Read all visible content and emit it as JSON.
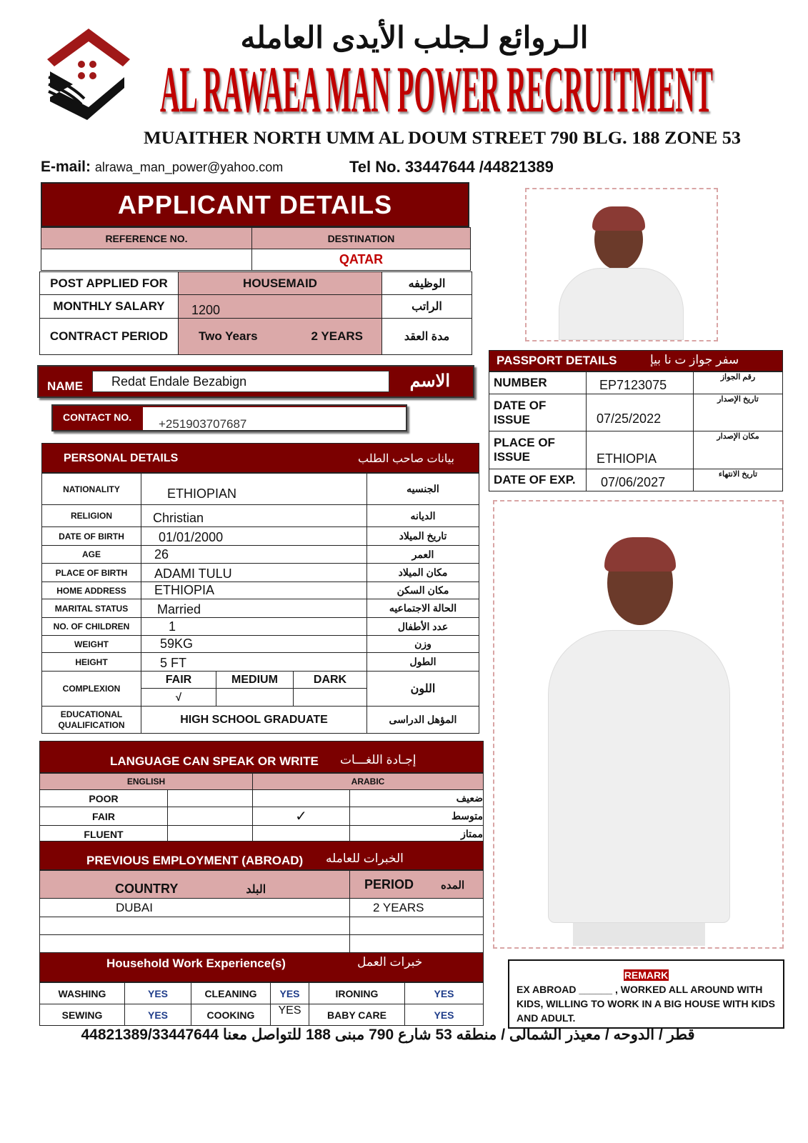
{
  "header": {
    "arabic_title": "الـروائع لـجلب الأيدى العامله",
    "title": "AL RAWAEA MAN POWER RECRUITMENT",
    "address": "MUAITHER NORTH UMM AL DOUM STREET 790 BLG. 188 ZONE 53",
    "email_label": "E-mail:",
    "email": "alrawa_man_power@yahoo.com",
    "tel": "Tel No. 33447644 /44821389",
    "colors": {
      "brand": "#7b0000",
      "title_red": "#c00000",
      "pink": "#dba9a9"
    }
  },
  "applicant": {
    "title": "APPLICANT DETAILS",
    "ref_label": "REFERENCE NO.",
    "ref_value": "",
    "dest_label": "DESTINATION",
    "dest_value": "QATAR",
    "rows": [
      {
        "label": "POST APPLIED FOR",
        "value": "HOUSEMAID",
        "value2": "",
        "ar": "الوظيفه"
      },
      {
        "label": "MONTHLY SALARY",
        "value": "1200",
        "value2": "",
        "ar": "الراتب"
      },
      {
        "label": "CONTRACT PERIOD",
        "value": "Two Years",
        "value2": "2 YEARS",
        "ar": "مدة العقد"
      }
    ],
    "name_label": "NAME",
    "name": "Redat Endale Bezabign",
    "name_ar": "الاسم",
    "contact_label": "CONTACT NO.",
    "contact": "+251903707687"
  },
  "passport": {
    "title": "PASSPORT DETAILS",
    "title_ar": "سفر جواز ت نا بيإ",
    "rows": [
      {
        "label": "NUMBER",
        "value": "EP7123075",
        "ar": "رقم الجواز"
      },
      {
        "label": "DATE OF ISSUE",
        "value": "07/25/2022",
        "ar": "تاريخ الإصدار"
      },
      {
        "label": "PLACE OF ISSUE",
        "value": "ETHIOPIA",
        "ar": "مكان الإصدار"
      },
      {
        "label": "DATE OF EXP.",
        "value": "07/06/2027",
        "ar": "تاريخ الانتهاء"
      }
    ]
  },
  "personal": {
    "title": "PERSONAL DETAILS",
    "title_ar": "بيانات صاحب الطلب",
    "rows": [
      {
        "label": "NATIONALITY",
        "value": "ETHIOPIAN",
        "ar": "الجنسيه"
      },
      {
        "label": "RELIGION",
        "value": "Christian",
        "ar": "الديانه"
      },
      {
        "label": "DATE OF BIRTH",
        "value": "01/01/2000",
        "ar": "تاريخ الميلاد"
      },
      {
        "label": "AGE",
        "value": "26",
        "ar": "العمر"
      },
      {
        "label": "PLACE OF BIRTH",
        "value": "ADAMI TULU",
        "ar": "مكان الميلاد"
      },
      {
        "label": "HOME ADDRESS",
        "value": "ETHIOPIA",
        "ar": "مكان السكن"
      },
      {
        "label": "MARITAL STATUS",
        "value": "Married",
        "ar": "الحالة الاجتماعيه"
      },
      {
        "label": "NO. OF CHILDREN",
        "value": "1",
        "ar": "عدد الأطفال"
      },
      {
        "label": "WEIGHT",
        "value": "59KG",
        "ar": "وزن"
      },
      {
        "label": "HEIGHT",
        "value": "5 FT",
        "ar": "الطول"
      }
    ],
    "complexion": {
      "label": "COMPLEXION",
      "options": [
        "FAIR",
        "MEDIUM",
        "DARK"
      ],
      "selected": "√",
      "ar": "اللون"
    },
    "education": {
      "label1": "EDUCATIONAL",
      "label2": "QUALIFICATION",
      "value": "HIGH SCHOOL GRADUATE",
      "ar": "المؤهل الدراسى"
    }
  },
  "language": {
    "title": "LANGUAGE CAN SPEAK OR WRITE",
    "title_ar": "إجـادة اللغـــات",
    "english": "ENGLISH",
    "arabic": "ARABIC",
    "levels": [
      {
        "en": "POOR",
        "ar": "ضعيف",
        "arabic_check": ""
      },
      {
        "en": "FAIR",
        "ar": "متوسط",
        "arabic_check": "✓"
      },
      {
        "en": "FLUENT",
        "ar": "ممتاز",
        "arabic_check": ""
      }
    ]
  },
  "employment": {
    "title": "PREVIOUS EMPLOYMENT (ABROAD)",
    "title_ar": "الخبرات للعامله",
    "country": "COUNTRY",
    "country_ar": "البلد",
    "period": "PERIOD",
    "period_ar": "المده",
    "rows": [
      {
        "country": "DUBAI",
        "period": "2 YEARS"
      },
      {
        "country": "",
        "period": ""
      },
      {
        "country": "",
        "period": ""
      }
    ]
  },
  "household": {
    "title": "Household Work Experience(s)",
    "title_ar": "خبرات العمل",
    "items": [
      {
        "label": "WASHING",
        "value": "YES"
      },
      {
        "label": "CLEANING",
        "value": "YES"
      },
      {
        "label": "IRONING",
        "value": "YES"
      },
      {
        "label": "SEWING",
        "value": "YES"
      },
      {
        "label": "COOKING",
        "value": "YES"
      },
      {
        "label": "BABY CARE",
        "value": "YES"
      }
    ]
  },
  "remark": {
    "title": "REMARK",
    "text": "EX ABROAD ______ , WORKED ALL AROUND WITH KIDS, WILLING TO WORK IN A BIG HOUSE WITH KIDS AND ADULT."
  },
  "footer": {
    "text": "قطر / الدوحه / معيذر الشمالى / منطقه 53 شارع 790 مبنى 188 للتواصل معنا 44821389/33447644"
  }
}
